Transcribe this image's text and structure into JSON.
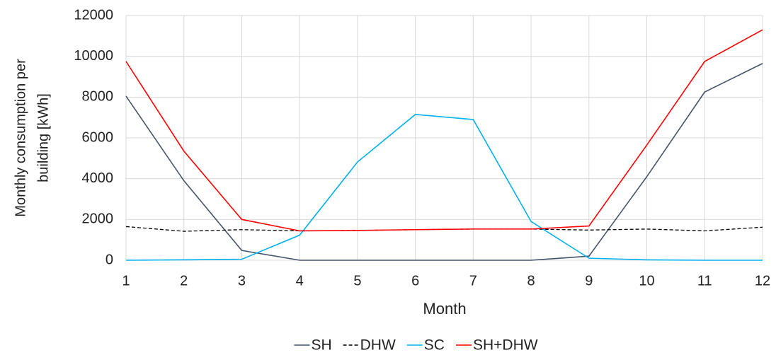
{
  "chart_data": {
    "type": "line",
    "ylabel": [
      "Monthly consumption per",
      "building [kWh]"
    ],
    "xlabel": "Month",
    "x": [
      1,
      2,
      3,
      4,
      5,
      6,
      7,
      8,
      9,
      10,
      11,
      12
    ],
    "xlim": [
      1,
      12
    ],
    "xticks": [
      1,
      2,
      3,
      4,
      5,
      6,
      7,
      8,
      9,
      10,
      11,
      12
    ],
    "ylim": [
      0,
      12000
    ],
    "yticks": [
      0,
      2000,
      4000,
      6000,
      8000,
      10000,
      12000
    ],
    "grid": true,
    "legend": "bottom",
    "series": [
      {
        "name": "SH",
        "color": "#44546a",
        "dash": false,
        "values": [
          8050,
          3900,
          480,
          0,
          0,
          0,
          0,
          0,
          200,
          4100,
          8250,
          9650
        ]
      },
      {
        "name": "DHW",
        "color": "#000000",
        "dash": true,
        "values": [
          1650,
          1420,
          1500,
          1440,
          1460,
          1500,
          1530,
          1530,
          1480,
          1530,
          1440,
          1620
        ]
      },
      {
        "name": "SC",
        "color": "#00b0f0",
        "dash": false,
        "values": [
          0,
          20,
          50,
          1230,
          4820,
          7150,
          6900,
          1900,
          100,
          20,
          0,
          0
        ]
      },
      {
        "name": "SH+DHW",
        "color": "#ff0000",
        "dash": false,
        "values": [
          9750,
          5350,
          2000,
          1440,
          1460,
          1500,
          1530,
          1530,
          1680,
          5650,
          9750,
          11300
        ]
      }
    ]
  }
}
